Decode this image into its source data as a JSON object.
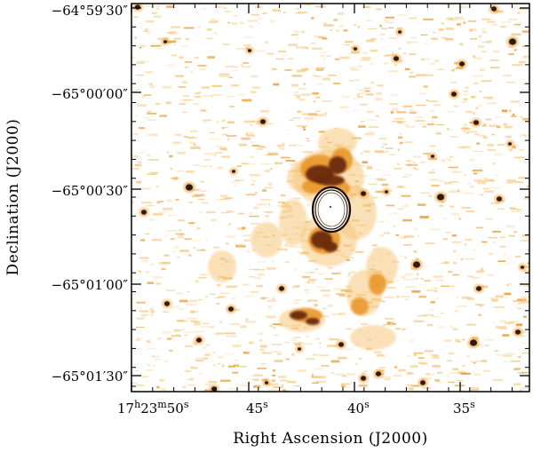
{
  "figure": {
    "xlabel": "Right Ascension (J2000)",
    "ylabel": "Declination (J2000)",
    "x_ticks": [
      {
        "h": "17",
        "hu": "h",
        "m": "23",
        "mu": "m",
        "s": "50",
        "su": "s"
      },
      {
        "s": "45",
        "su": "s"
      },
      {
        "s": "40",
        "su": "s"
      },
      {
        "s": "35",
        "su": "s"
      }
    ],
    "y_ticks": [
      "−64°59′30″",
      "−65°00′00″",
      "−65°00′30″",
      "−65°01′00″",
      "−65°01′30″"
    ],
    "colormap": {
      "background": "#ffffff",
      "low": "#f6c77c",
      "mid": "#e8901a",
      "high": "#6a2b08",
      "peak": "#1a0800"
    }
  }
}
